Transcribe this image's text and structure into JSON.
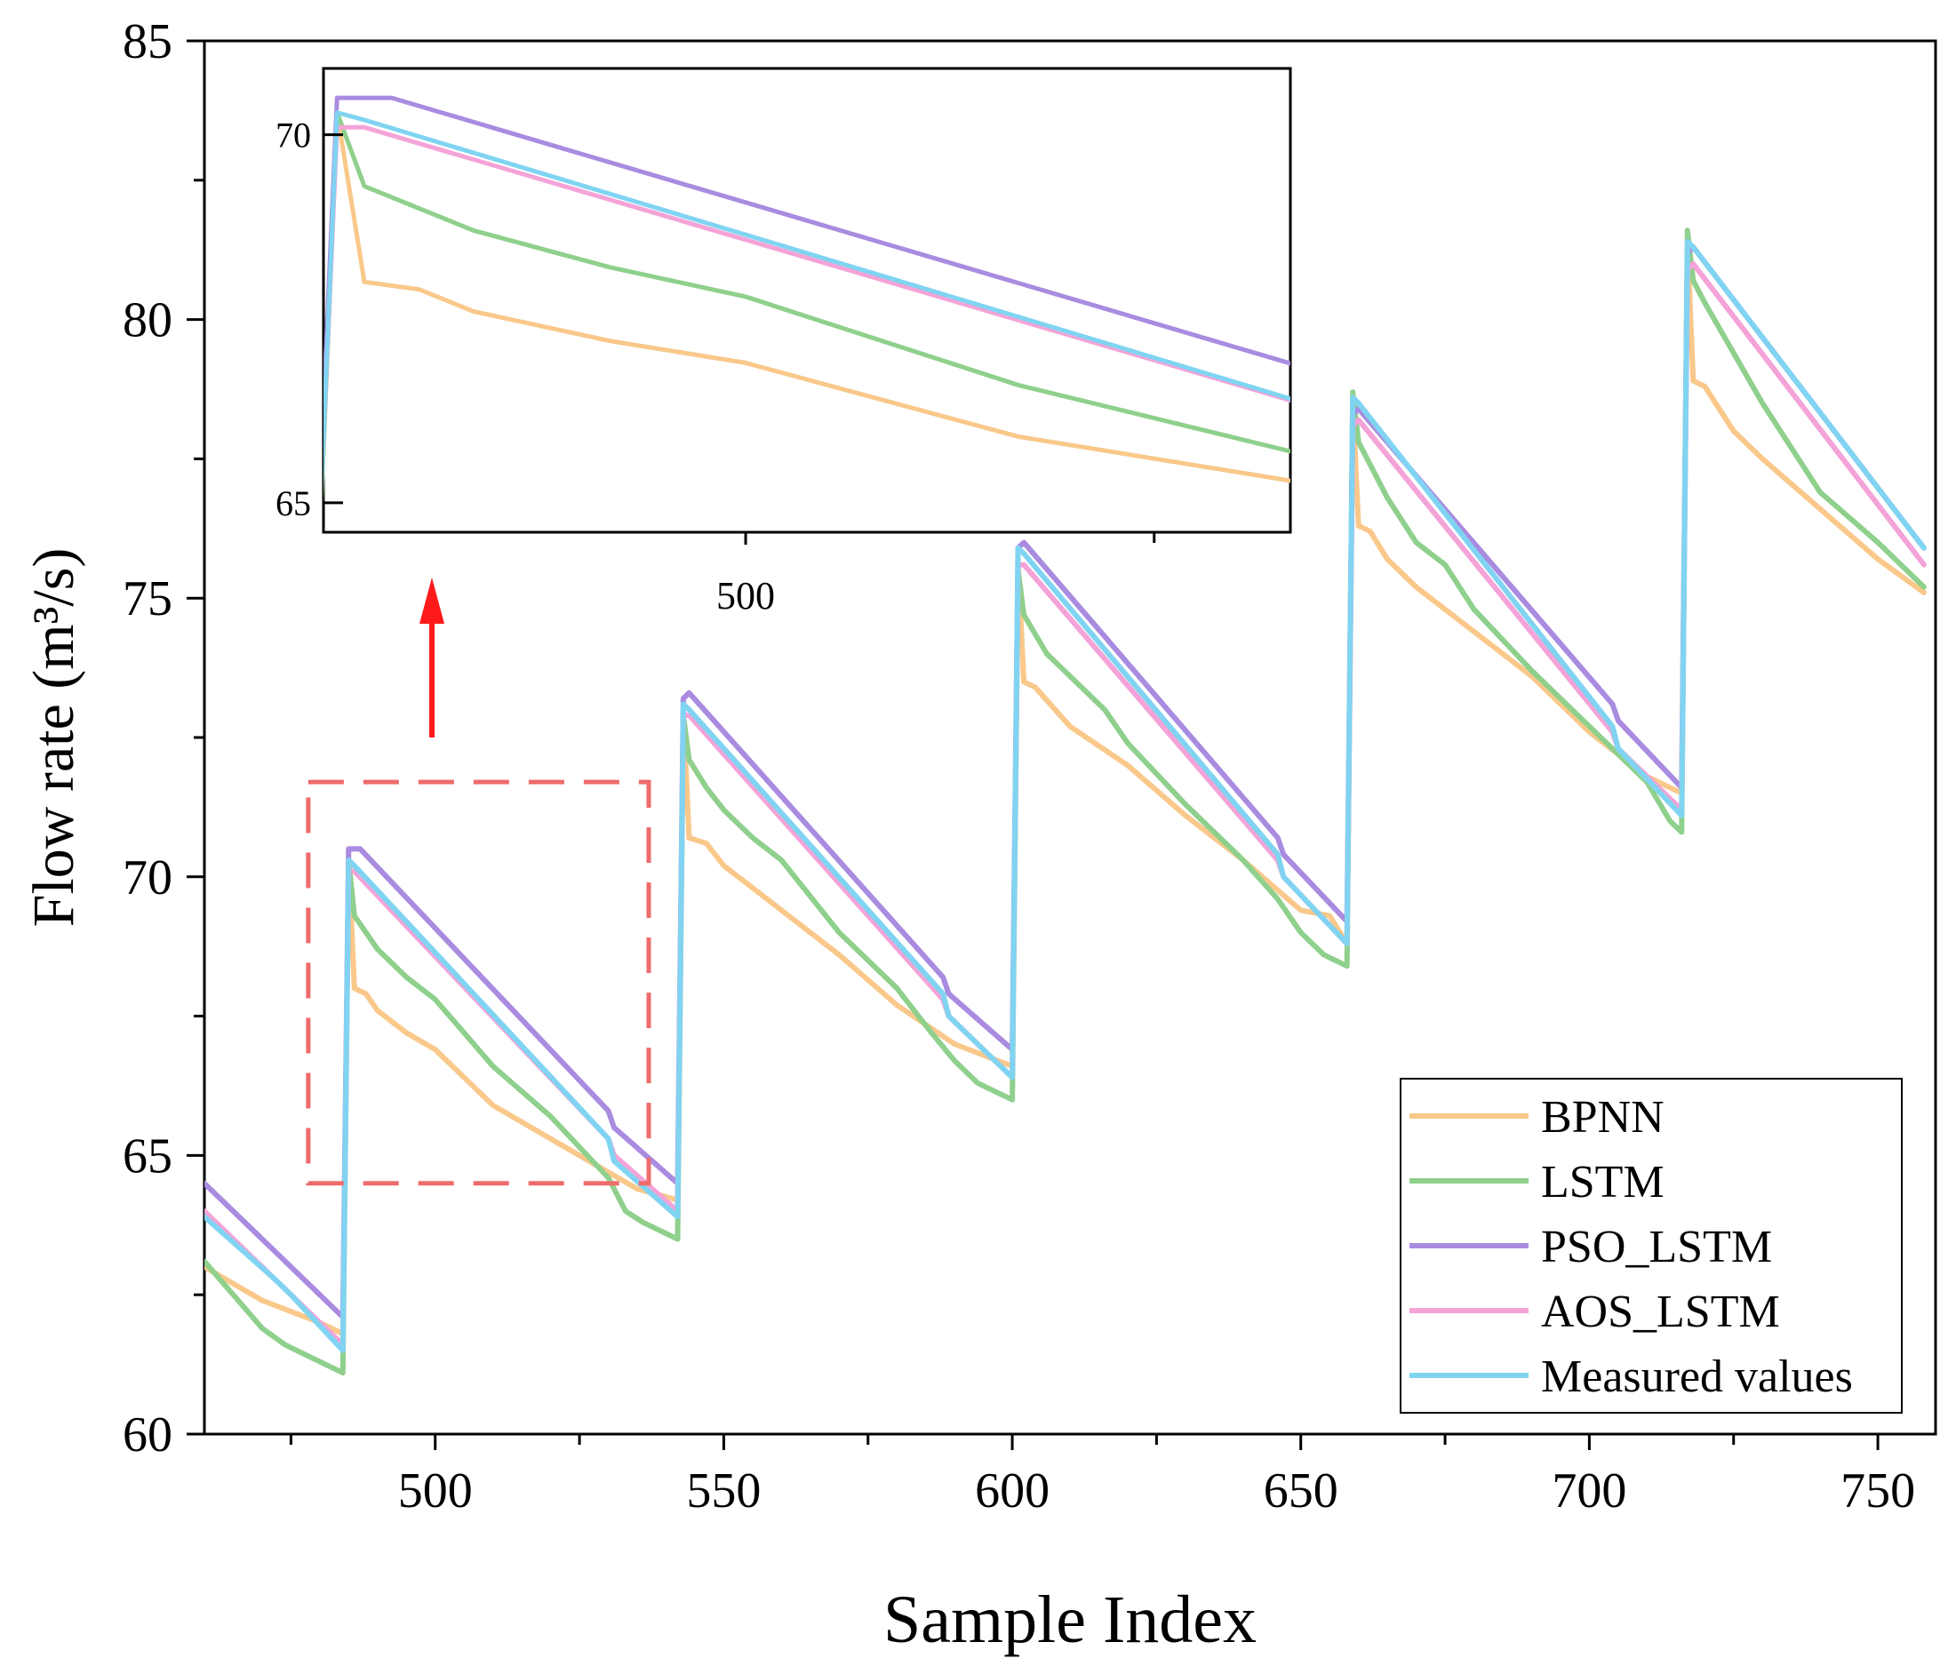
{
  "chart_data": {
    "type": "line",
    "title": "",
    "xlabel": "Sample Index",
    "ylabel": "Flow rate (m³/s)",
    "xlim": [
      460,
      760
    ],
    "ylim": [
      60,
      85
    ],
    "x_ticks": [
      500,
      550,
      600,
      650,
      700,
      750
    ],
    "y_ticks": [
      60,
      65,
      70,
      75,
      80,
      85
    ],
    "legend_position": "bottom-right",
    "colors": {
      "BPNN": "#f9c88a",
      "LSTM": "#8fd08c",
      "PSO_LSTM": "#a98be0",
      "AOS_LSTM": "#f4a3d8",
      "Measured values": "#80d4f2"
    },
    "series": [
      {
        "name": "BPNN",
        "x": [
          460,
          470,
          480,
          484,
          485,
          486,
          488,
          490,
          495,
          500,
          505,
          510,
          520,
          530,
          535,
          542,
          543,
          544,
          547,
          550,
          555,
          560,
          570,
          580,
          590,
          600,
          601,
          602,
          604,
          610,
          620,
          630,
          640,
          650,
          655,
          658,
          659,
          660,
          662,
          665,
          670,
          680,
          690,
          700,
          710,
          716,
          717,
          718,
          720,
          725,
          730,
          740,
          750,
          758
        ],
        "values": [
          63.0,
          62.4,
          62.0,
          61.8,
          70.3,
          68.0,
          67.9,
          67.6,
          67.2,
          66.9,
          66.4,
          65.9,
          65.3,
          64.7,
          64.4,
          64.2,
          73.0,
          70.7,
          70.6,
          70.2,
          69.8,
          69.4,
          68.6,
          67.7,
          67.0,
          66.6,
          75.6,
          73.5,
          73.4,
          72.7,
          72.0,
          71.1,
          70.3,
          69.4,
          69.3,
          68.8,
          78.5,
          76.3,
          76.2,
          75.7,
          75.2,
          74.4,
          73.6,
          72.6,
          71.8,
          71.5,
          81.4,
          78.9,
          78.8,
          78.0,
          77.5,
          76.6,
          75.7,
          75.1
        ]
      },
      {
        "name": "LSTM",
        "x": [
          460,
          465,
          470,
          474,
          478,
          484,
          485,
          486,
          488,
          490,
          495,
          500,
          510,
          520,
          530,
          533,
          536,
          542,
          543,
          544,
          547,
          550,
          555,
          560,
          570,
          580,
          586,
          590,
          594,
          600,
          601,
          602,
          606,
          610,
          616,
          620,
          630,
          640,
          646,
          650,
          654,
          658,
          659,
          660,
          662,
          665,
          670,
          675,
          680,
          690,
          700,
          710,
          714,
          716,
          717,
          718,
          720,
          725,
          730,
          740,
          750,
          758
        ],
        "values": [
          63.1,
          62.5,
          61.9,
          61.6,
          61.4,
          61.1,
          70.3,
          69.3,
          69.0,
          68.7,
          68.2,
          67.8,
          66.6,
          65.7,
          64.6,
          64.0,
          63.8,
          63.5,
          72.9,
          72.1,
          71.6,
          71.2,
          70.7,
          70.3,
          69.0,
          68.0,
          67.2,
          66.7,
          66.3,
          66.0,
          75.5,
          74.7,
          74.0,
          73.6,
          73.0,
          72.4,
          71.3,
          70.3,
          69.6,
          69.0,
          68.6,
          68.4,
          78.7,
          77.8,
          77.4,
          76.8,
          76.0,
          75.6,
          74.8,
          73.7,
          72.7,
          71.7,
          71.0,
          70.8,
          81.6,
          80.7,
          80.3,
          79.4,
          78.5,
          76.9,
          76.0,
          75.2
        ]
      },
      {
        "name": "PSO_LSTM",
        "x": [
          460,
          472,
          475,
          484,
          485,
          487,
          530,
          531,
          542,
          543,
          544,
          588,
          589,
          600,
          601,
          602,
          646,
          647,
          658,
          659,
          660,
          704,
          705,
          716,
          717,
          718,
          758
        ],
        "values": [
          64.5,
          63.3,
          63.0,
          62.1,
          70.5,
          70.5,
          65.8,
          65.5,
          64.5,
          73.2,
          73.3,
          68.2,
          67.9,
          66.9,
          75.9,
          76.0,
          70.7,
          70.4,
          69.2,
          78.3,
          78.4,
          73.1,
          72.8,
          71.6,
          81.2,
          81.3,
          75.9
        ]
      },
      {
        "name": "AOS_LSTM",
        "x": [
          460,
          472,
          475,
          484,
          485,
          486,
          530,
          531,
          542,
          543,
          544,
          588,
          589,
          600,
          601,
          602,
          646,
          647,
          658,
          659,
          660,
          704,
          705,
          716,
          717,
          718,
          758
        ],
        "values": [
          64.0,
          62.8,
          62.5,
          61.6,
          70.1,
          70.1,
          65.3,
          65.0,
          64.0,
          72.9,
          72.9,
          67.8,
          67.5,
          66.4,
          75.6,
          75.6,
          70.3,
          70.0,
          68.8,
          78.1,
          78.2,
          72.6,
          72.3,
          71.2,
          80.9,
          81.0,
          75.6
        ]
      },
      {
        "name": "Measured values",
        "x": [
          460,
          472,
          475,
          484,
          485,
          486,
          530,
          531,
          542,
          543,
          544,
          588,
          589,
          600,
          601,
          602,
          646,
          647,
          658,
          659,
          660,
          704,
          705,
          716,
          717,
          718,
          758
        ],
        "values": [
          63.9,
          62.8,
          62.5,
          61.5,
          70.3,
          70.2,
          65.3,
          64.9,
          63.9,
          73.1,
          73.0,
          67.9,
          67.5,
          66.4,
          75.9,
          75.8,
          70.4,
          70.0,
          68.8,
          78.6,
          78.5,
          72.7,
          72.3,
          71.1,
          81.4,
          81.3,
          75.9
        ]
      }
    ],
    "zoom_region": {
      "x_range": [
        478,
        537
      ],
      "y_range": [
        64.5,
        71.7
      ]
    },
    "inset": {
      "xlim": [
        484.5,
        520
      ],
      "ylim": [
        64.6,
        70.9
      ],
      "x_ticks": [
        500
      ],
      "x_minor_ticks": [
        515
      ],
      "y_ticks": [
        65,
        70
      ]
    }
  }
}
